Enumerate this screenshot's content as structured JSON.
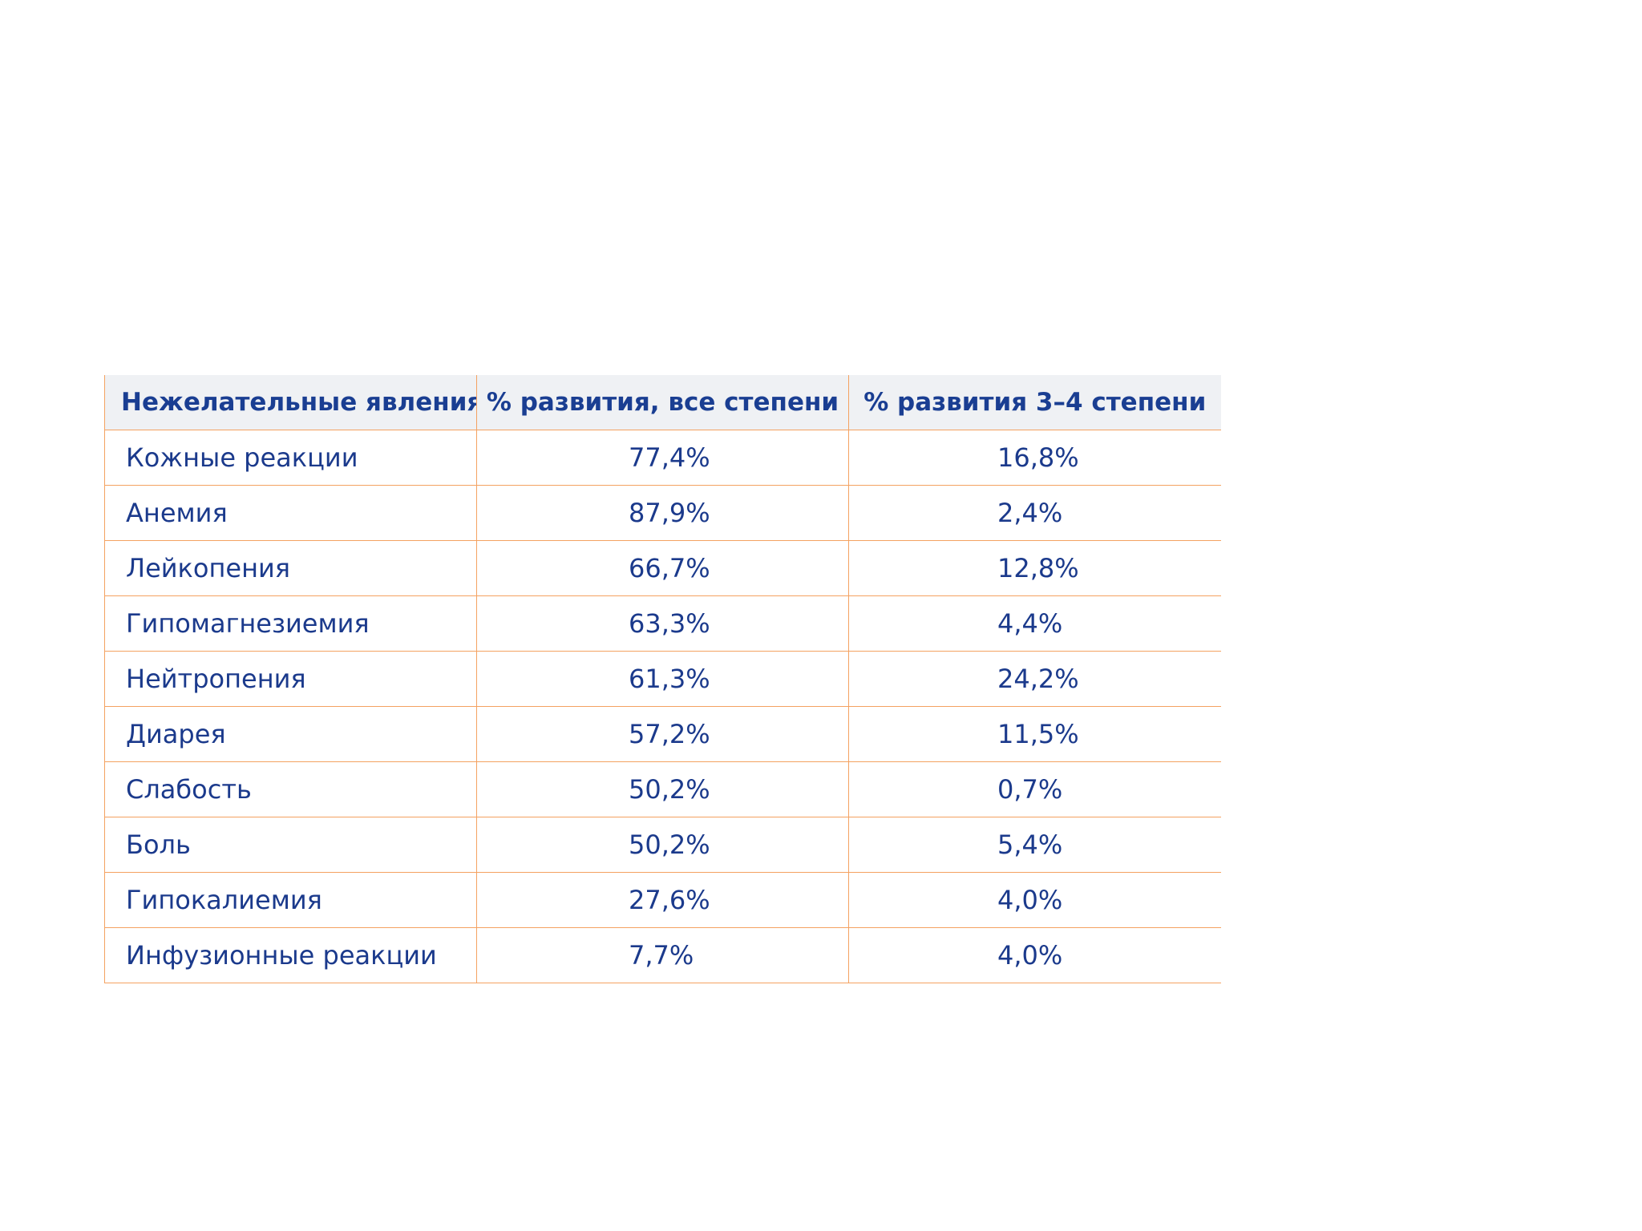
{
  "table": {
    "headers": {
      "name": "Нежелательные явления",
      "all_grades": "% развития, все степени",
      "grade_3_4": "% развития 3–4 степени"
    },
    "rows": [
      {
        "name": "Кожные реакции",
        "all_grades": "77,4%",
        "grade_3_4": "16,8%"
      },
      {
        "name": "Анемия",
        "all_grades": "87,9%",
        "grade_3_4": "2,4%"
      },
      {
        "name": "Лейкопения",
        "all_grades": "66,7%",
        "grade_3_4": "12,8%"
      },
      {
        "name": "Гипомагнезиемия",
        "all_grades": "63,3%",
        "grade_3_4": "4,4%"
      },
      {
        "name": "Нейтропения",
        "all_grades": "61,3%",
        "grade_3_4": "24,2%"
      },
      {
        "name": "Диарея",
        "all_grades": "57,2%",
        "grade_3_4": "11,5%"
      },
      {
        "name": "Слабость",
        "all_grades": "50,2%",
        "grade_3_4": "0,7%"
      },
      {
        "name": "Боль",
        "all_grades": "50,2%",
        "grade_3_4": "5,4%"
      },
      {
        "name": "Гипокалиемия",
        "all_grades": "27,6%",
        "grade_3_4": "4,0%"
      },
      {
        "name": "Инфузионные реакции",
        "all_grades": "7,7%",
        "grade_3_4": "4,0%"
      }
    ],
    "colors": {
      "text": "#1b3a8c",
      "border": "#f4a261",
      "header_bg": "#eff1f4"
    }
  }
}
